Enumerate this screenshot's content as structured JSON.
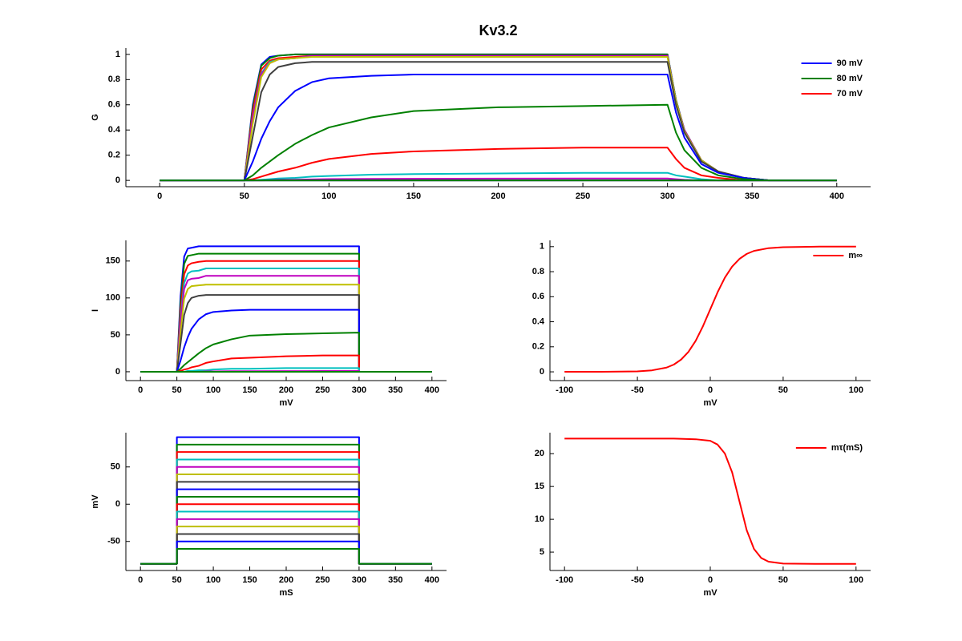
{
  "chart_data": [
    {
      "type": "line",
      "title": "Kv3.2",
      "ylabel": "G",
      "x": [
        0,
        50,
        55,
        60,
        65,
        70,
        80,
        90,
        100,
        125,
        150,
        200,
        250,
        300,
        305,
        310,
        320,
        330,
        345,
        360,
        380,
        400
      ],
      "xlim": [
        -20,
        420
      ],
      "xticks": [
        0,
        50,
        100,
        150,
        200,
        250,
        300,
        350,
        400
      ],
      "ylim": [
        -0.05,
        1.05
      ],
      "yticks": [
        0,
        0.2,
        0.4,
        0.6,
        0.8,
        1
      ],
      "legend": "upper right",
      "series": [
        {
          "name": "90 mV",
          "color": "#0000ff",
          "values": [
            0,
            0,
            0.6,
            0.92,
            0.98,
            0.99,
            1,
            1,
            1,
            1,
            1,
            1,
            1,
            1,
            0.64,
            0.4,
            0.16,
            0.07,
            0.02,
            0,
            0,
            0
          ]
        },
        {
          "name": "80 mV",
          "color": "#008000",
          "values": [
            0,
            0,
            0.58,
            0.91,
            0.97,
            0.99,
            1,
            1,
            1,
            1,
            1,
            1,
            1,
            1,
            0.64,
            0.4,
            0.16,
            0.07,
            0.02,
            0,
            0,
            0
          ]
        },
        {
          "name": "70 mV",
          "color": "#ff0000",
          "values": [
            0,
            0,
            0.55,
            0.88,
            0.95,
            0.97,
            0.98,
            0.99,
            0.99,
            0.99,
            0.99,
            0.99,
            0.99,
            0.99,
            0.63,
            0.4,
            0.16,
            0.07,
            0.02,
            0,
            0,
            0
          ]
        },
        {
          "color": "#00bfbf",
          "values": [
            0,
            0,
            0.51,
            0.85,
            0.94,
            0.96,
            0.97,
            0.99,
            0.99,
            0.99,
            0.99,
            0.99,
            0.99,
            0.99,
            0.63,
            0.4,
            0.16,
            0.07,
            0.02,
            0,
            0,
            0
          ]
        },
        {
          "color": "#bf00bf",
          "values": [
            0,
            0,
            0.5,
            0.84,
            0.93,
            0.96,
            0.97,
            0.99,
            0.99,
            0.99,
            0.99,
            0.99,
            0.99,
            0.99,
            0.63,
            0.4,
            0.16,
            0.07,
            0.02,
            0,
            0,
            0
          ]
        },
        {
          "color": "#bfbf00",
          "values": [
            0,
            0,
            0.45,
            0.82,
            0.93,
            0.96,
            0.97,
            0.98,
            0.98,
            0.98,
            0.98,
            0.98,
            0.98,
            0.98,
            0.63,
            0.39,
            0.16,
            0.07,
            0.02,
            0,
            0,
            0
          ]
        },
        {
          "color": "#404040",
          "values": [
            0,
            0,
            0.35,
            0.7,
            0.84,
            0.9,
            0.93,
            0.94,
            0.94,
            0.94,
            0.94,
            0.94,
            0.94,
            0.94,
            0.6,
            0.38,
            0.15,
            0.07,
            0.02,
            0,
            0,
            0
          ]
        },
        {
          "color": "#0000ff",
          "values": [
            0,
            0,
            0.15,
            0.33,
            0.47,
            0.58,
            0.71,
            0.78,
            0.81,
            0.83,
            0.84,
            0.84,
            0.84,
            0.84,
            0.54,
            0.34,
            0.13,
            0.06,
            0.02,
            0,
            0,
            0
          ]
        },
        {
          "color": "#008000",
          "values": [
            0,
            0,
            0.04,
            0.1,
            0.15,
            0.2,
            0.29,
            0.36,
            0.42,
            0.5,
            0.55,
            0.58,
            0.59,
            0.6,
            0.38,
            0.24,
            0.1,
            0.04,
            0.01,
            0,
            0,
            0
          ]
        },
        {
          "color": "#ff0000",
          "values": [
            0,
            0,
            0.01,
            0.03,
            0.05,
            0.07,
            0.1,
            0.14,
            0.17,
            0.21,
            0.23,
            0.25,
            0.26,
            0.26,
            0.17,
            0.1,
            0.04,
            0.02,
            0,
            0,
            0,
            0
          ]
        },
        {
          "color": "#00bfbf",
          "values": [
            0,
            0,
            0,
            0.005,
            0.01,
            0.015,
            0.02,
            0.03,
            0.035,
            0.045,
            0.05,
            0.055,
            0.06,
            0.06,
            0.04,
            0.03,
            0.01,
            0,
            0,
            0,
            0,
            0
          ]
        },
        {
          "color": "#bf00bf",
          "values": [
            0,
            0,
            0,
            0,
            0.002,
            0.004,
            0.006,
            0.008,
            0.01,
            0.012,
            0.013,
            0.014,
            0.015,
            0.015,
            0.01,
            0.005,
            0,
            0,
            0,
            0,
            0,
            0
          ]
        },
        {
          "color": "#bfbf00",
          "values": [
            0,
            0,
            0,
            0,
            0,
            0,
            0,
            0,
            0,
            0,
            0,
            0,
            0,
            0,
            0,
            0,
            0,
            0,
            0,
            0,
            0,
            0
          ]
        },
        {
          "color": "#404040",
          "values": [
            0,
            0,
            0,
            0,
            0,
            0,
            0,
            0,
            0,
            0,
            0,
            0,
            0,
            0,
            0,
            0,
            0,
            0,
            0,
            0,
            0,
            0
          ]
        },
        {
          "color": "#0000ff",
          "values": [
            0,
            0,
            0,
            0,
            0,
            0,
            0,
            0,
            0,
            0,
            0,
            0,
            0,
            0,
            0,
            0,
            0,
            0,
            0,
            0,
            0,
            0
          ]
        },
        {
          "color": "#008000",
          "values": [
            0,
            0,
            0,
            0,
            0,
            0,
            0,
            0,
            0,
            0,
            0,
            0,
            0,
            0,
            0,
            0,
            0,
            0,
            0,
            0,
            0,
            0
          ]
        }
      ]
    },
    {
      "type": "line",
      "xlabel": "mV",
      "ylabel": "I",
      "x": [
        0,
        50,
        55,
        60,
        65,
        70,
        80,
        90,
        100,
        125,
        150,
        200,
        250,
        300,
        300,
        400
      ],
      "xlim": [
        -20,
        420
      ],
      "xticks": [
        0,
        50,
        100,
        150,
        200,
        250,
        300,
        350,
        400
      ],
      "ylim": [
        -12,
        178
      ],
      "yticks": [
        0,
        50,
        100,
        150
      ],
      "series": [
        {
          "color": "#0000ff",
          "values": [
            0,
            0,
            102,
            156,
            167,
            168,
            170,
            170,
            170,
            170,
            170,
            170,
            170,
            170,
            0,
            0
          ]
        },
        {
          "color": "#008000",
          "values": [
            0,
            0,
            93,
            146,
            157,
            158,
            160,
            160,
            160,
            160,
            160,
            160,
            160,
            160,
            0,
            0
          ]
        },
        {
          "color": "#ff0000",
          "values": [
            0,
            0,
            83,
            132,
            144,
            147,
            149,
            150,
            150,
            150,
            150,
            150,
            150,
            150,
            0,
            0
          ]
        },
        {
          "color": "#00bfbf",
          "values": [
            0,
            0,
            73,
            120,
            133,
            136,
            137,
            140,
            140,
            140,
            140,
            140,
            140,
            140,
            0,
            0
          ]
        },
        {
          "color": "#bf00bf",
          "values": [
            0,
            0,
            68,
            112,
            124,
            126,
            127,
            130,
            130,
            130,
            130,
            130,
            130,
            130,
            0,
            0
          ]
        },
        {
          "color": "#bfbf00",
          "values": [
            0,
            0,
            54,
            99,
            112,
            116,
            117,
            118,
            118,
            118,
            118,
            118,
            118,
            118,
            0,
            0
          ]
        },
        {
          "color": "#404040",
          "values": [
            0,
            0,
            38,
            77,
            93,
            100,
            103,
            104,
            104,
            104,
            104,
            104,
            104,
            104,
            0,
            0
          ]
        },
        {
          "color": "#0000ff",
          "values": [
            0,
            0,
            15,
            33,
            47,
            58,
            71,
            78,
            81,
            83,
            84,
            84,
            84,
            84,
            0,
            0
          ]
        },
        {
          "color": "#008000",
          "values": [
            0,
            0,
            4,
            9,
            13,
            17,
            25,
            32,
            37,
            44,
            49,
            51,
            52,
            53,
            0,
            0
          ]
        },
        {
          "color": "#ff0000",
          "values": [
            0,
            0,
            1,
            3,
            4,
            6,
            8,
            12,
            14,
            18,
            19,
            21,
            22,
            22,
            0,
            0
          ]
        },
        {
          "color": "#00bfbf",
          "values": [
            0,
            0,
            0,
            0,
            1,
            1,
            2,
            2,
            3,
            4,
            4,
            5,
            5,
            5,
            0,
            0
          ]
        },
        {
          "color": "#bf00bf",
          "values": [
            0,
            0,
            0,
            0,
            0,
            0,
            0,
            0.5,
            0.5,
            0.7,
            0.8,
            0.9,
            1,
            1,
            0,
            0
          ]
        },
        {
          "color": "#bfbf00",
          "values": [
            0,
            0,
            0,
            0,
            0,
            0,
            0,
            0,
            0,
            0,
            0,
            0,
            0,
            0,
            0,
            0
          ]
        },
        {
          "color": "#404040",
          "values": [
            0,
            0,
            0,
            0,
            0,
            0,
            0,
            0,
            0,
            0,
            0,
            0,
            0,
            0,
            0,
            0
          ]
        },
        {
          "color": "#0000ff",
          "values": [
            0,
            0,
            0,
            0,
            0,
            0,
            0,
            0,
            0,
            0,
            0,
            0,
            0,
            0,
            0,
            0
          ]
        },
        {
          "color": "#008000",
          "values": [
            0,
            0,
            0,
            0,
            0,
            0,
            0,
            0,
            0,
            0,
            0,
            0,
            0,
            0,
            0,
            0
          ]
        }
      ]
    },
    {
      "type": "line",
      "xlabel": "mV",
      "x": [
        -100,
        -75,
        -50,
        -40,
        -30,
        -25,
        -20,
        -15,
        -10,
        -5,
        0,
        5,
        10,
        15,
        20,
        25,
        30,
        40,
        50,
        75,
        100
      ],
      "xlim": [
        -110,
        110
      ],
      "xticks": [
        -100,
        -50,
        0,
        50,
        100
      ],
      "ylim": [
        -0.07,
        1.05
      ],
      "yticks": [
        0,
        0.2,
        0.4,
        0.6,
        0.8,
        1
      ],
      "legend": "upper right",
      "series": [
        {
          "name": "m∞",
          "color": "#ff0000",
          "values": [
            0,
            0,
            0.004,
            0.012,
            0.034,
            0.058,
            0.098,
            0.159,
            0.248,
            0.365,
            0.5,
            0.635,
            0.752,
            0.841,
            0.902,
            0.942,
            0.966,
            0.988,
            0.996,
            1,
            1
          ]
        }
      ]
    },
    {
      "type": "line",
      "xlabel": "mS",
      "ylabel": "mV",
      "x": [
        0,
        50,
        50,
        300,
        300,
        400
      ],
      "xlim": [
        -20,
        420
      ],
      "xticks": [
        0,
        50,
        100,
        150,
        200,
        250,
        300,
        350,
        400
      ],
      "ylim": [
        -89,
        96
      ],
      "yticks": [
        -50,
        0,
        50
      ],
      "series": [
        {
          "color": "#0000ff",
          "values": [
            -80,
            -80,
            90,
            90,
            -80,
            -80
          ]
        },
        {
          "color": "#008000",
          "values": [
            -80,
            -80,
            80,
            80,
            -80,
            -80
          ]
        },
        {
          "color": "#ff0000",
          "values": [
            -80,
            -80,
            70,
            70,
            -80,
            -80
          ]
        },
        {
          "color": "#00bfbf",
          "values": [
            -80,
            -80,
            60,
            60,
            -80,
            -80
          ]
        },
        {
          "color": "#bf00bf",
          "values": [
            -80,
            -80,
            50,
            50,
            -80,
            -80
          ]
        },
        {
          "color": "#bfbf00",
          "values": [
            -80,
            -80,
            40,
            40,
            -80,
            -80
          ]
        },
        {
          "color": "#404040",
          "values": [
            -80,
            -80,
            30,
            30,
            -80,
            -80
          ]
        },
        {
          "color": "#0000ff",
          "values": [
            -80,
            -80,
            20,
            20,
            -80,
            -80
          ]
        },
        {
          "color": "#008000",
          "values": [
            -80,
            -80,
            10,
            10,
            -80,
            -80
          ]
        },
        {
          "color": "#ff0000",
          "values": [
            -80,
            -80,
            0,
            0,
            -80,
            -80
          ]
        },
        {
          "color": "#00bfbf",
          "values": [
            -80,
            -80,
            -10,
            -10,
            -80,
            -80
          ]
        },
        {
          "color": "#bf00bf",
          "values": [
            -80,
            -80,
            -20,
            -20,
            -80,
            -80
          ]
        },
        {
          "color": "#bfbf00",
          "values": [
            -80,
            -80,
            -30,
            -30,
            -80,
            -80
          ]
        },
        {
          "color": "#404040",
          "values": [
            -80,
            -80,
            -40,
            -40,
            -80,
            -80
          ]
        },
        {
          "color": "#0000ff",
          "values": [
            -80,
            -80,
            -50,
            -50,
            -80,
            -80
          ]
        },
        {
          "color": "#008000",
          "values": [
            -80,
            -80,
            -60,
            -60,
            -80,
            -80
          ]
        }
      ]
    },
    {
      "type": "line",
      "xlabel": "mV",
      "x": [
        -100,
        -75,
        -50,
        -25,
        -10,
        0,
        5,
        10,
        15,
        20,
        25,
        30,
        35,
        40,
        50,
        75,
        100
      ],
      "xlim": [
        -110,
        110
      ],
      "xticks": [
        -100,
        -50,
        0,
        50,
        100
      ],
      "ylim": [
        2.2,
        23.2
      ],
      "yticks": [
        5,
        10,
        15,
        20
      ],
      "legend": "upper right",
      "series": [
        {
          "name": "mτ(mS)",
          "color": "#ff0000",
          "values": [
            22.3,
            22.3,
            22.3,
            22.3,
            22.2,
            21.96,
            21.39,
            20.03,
            17.16,
            12.75,
            8.34,
            5.48,
            4.1,
            3.54,
            3.25,
            3.2,
            3.2
          ]
        }
      ]
    }
  ]
}
